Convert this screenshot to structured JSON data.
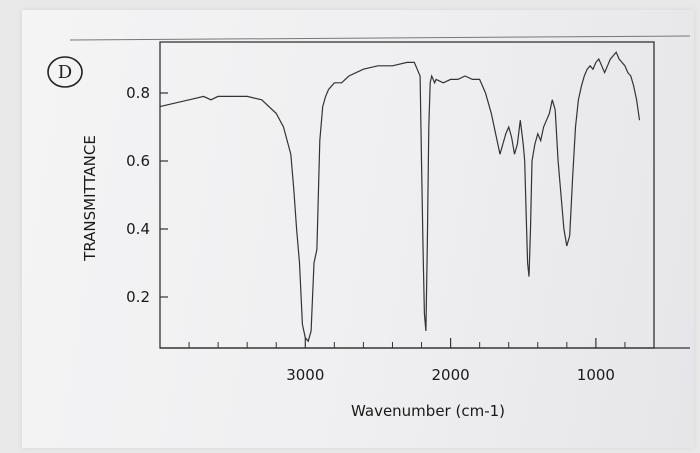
{
  "annotation": {
    "letter": "D"
  },
  "chart_data": {
    "type": "line",
    "title": "",
    "xlabel": "Wavenumber (cm-1)",
    "ylabel": "TRANSMITTANCE",
    "x_reversed": true,
    "xlim": [
      4000,
      600
    ],
    "ylim": [
      0.05,
      0.95
    ],
    "x_ticks": [
      {
        "value": 3000,
        "label": "3000"
      },
      {
        "value": 2000,
        "label": "2000"
      },
      {
        "value": 1000,
        "label": "1000"
      }
    ],
    "y_ticks": [
      {
        "value": 0.8,
        "label": "0.8"
      },
      {
        "value": 0.6,
        "label": "0.6"
      },
      {
        "value": 0.4,
        "label": "0.4"
      },
      {
        "value": 0.2,
        "label": "0.2"
      }
    ],
    "grid": false,
    "series": [
      {
        "x": [
          4000,
          3900,
          3800,
          3700,
          3650,
          3600,
          3550,
          3500,
          3400,
          3300,
          3200,
          3150,
          3100,
          3080,
          3060,
          3040,
          3020,
          3000,
          2980,
          2960,
          2940,
          2920,
          2900,
          2880,
          2860,
          2840,
          2820,
          2800,
          2750,
          2700,
          2600,
          2500,
          2400,
          2300,
          2250,
          2230,
          2210,
          2200,
          2190,
          2180,
          2170,
          2160,
          2150,
          2140,
          2130,
          2120,
          2110,
          2100,
          2050,
          2000,
          1950,
          1900,
          1850,
          1800,
          1780,
          1760,
          1740,
          1720,
          1700,
          1680,
          1660,
          1640,
          1620,
          1600,
          1580,
          1560,
          1540,
          1520,
          1500,
          1490,
          1480,
          1470,
          1460,
          1450,
          1440,
          1420,
          1400,
          1380,
          1360,
          1340,
          1320,
          1300,
          1280,
          1260,
          1240,
          1220,
          1200,
          1180,
          1160,
          1140,
          1120,
          1100,
          1080,
          1060,
          1040,
          1020,
          1000,
          980,
          960,
          940,
          920,
          900,
          880,
          860,
          840,
          820,
          800,
          780,
          760,
          740,
          720,
          700
        ],
        "y": [
          0.76,
          0.77,
          0.78,
          0.79,
          0.78,
          0.79,
          0.79,
          0.79,
          0.79,
          0.78,
          0.74,
          0.7,
          0.62,
          0.52,
          0.4,
          0.3,
          0.12,
          0.08,
          0.07,
          0.1,
          0.3,
          0.34,
          0.66,
          0.76,
          0.79,
          0.81,
          0.82,
          0.83,
          0.83,
          0.85,
          0.87,
          0.88,
          0.88,
          0.89,
          0.89,
          0.87,
          0.85,
          0.6,
          0.35,
          0.15,
          0.1,
          0.35,
          0.7,
          0.83,
          0.85,
          0.84,
          0.83,
          0.84,
          0.83,
          0.84,
          0.84,
          0.85,
          0.84,
          0.84,
          0.82,
          0.8,
          0.77,
          0.74,
          0.7,
          0.66,
          0.62,
          0.65,
          0.68,
          0.7,
          0.67,
          0.62,
          0.65,
          0.72,
          0.65,
          0.6,
          0.45,
          0.3,
          0.26,
          0.4,
          0.6,
          0.65,
          0.68,
          0.66,
          0.7,
          0.72,
          0.74,
          0.78,
          0.75,
          0.6,
          0.5,
          0.4,
          0.35,
          0.38,
          0.55,
          0.7,
          0.78,
          0.82,
          0.85,
          0.87,
          0.88,
          0.87,
          0.89,
          0.9,
          0.88,
          0.86,
          0.88,
          0.9,
          0.91,
          0.92,
          0.9,
          0.89,
          0.88,
          0.86,
          0.85,
          0.82,
          0.78,
          0.72
        ]
      }
    ]
  }
}
